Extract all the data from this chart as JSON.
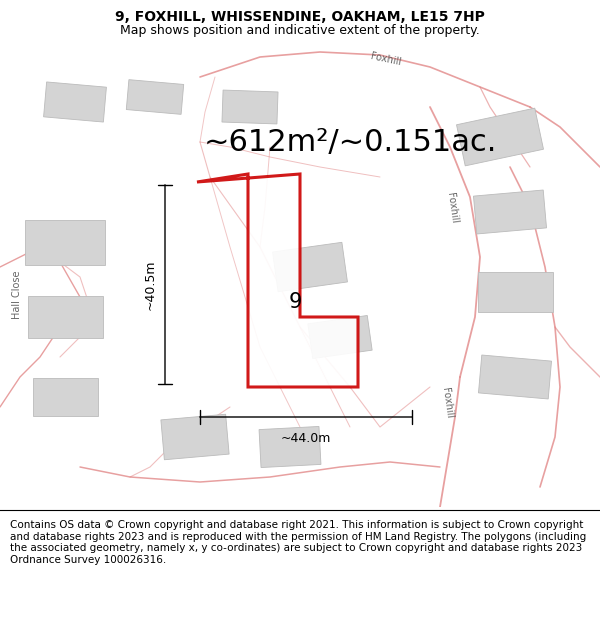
{
  "title": "9, FOXHILL, WHISSENDINE, OAKHAM, LE15 7HP",
  "subtitle": "Map shows position and indicative extent of the property.",
  "area_text": "~612m²/~0.151ac.",
  "dim_width": "~44.0m",
  "dim_height": "~40.5m",
  "property_label": "9",
  "footer": "Contains OS data © Crown copyright and database right 2021. This information is subject to Crown copyright and database rights 2023 and is reproduced with the permission of HM Land Registry. The polygons (including the associated geometry, namely x, y co-ordinates) are subject to Crown copyright and database rights 2023 Ordnance Survey 100026316.",
  "map_bg": "#ffffff",
  "road_line_color": "#e08080",
  "building_color": "#d4d4d4",
  "building_edge": "#bbbbbb",
  "property_outline_color": "#cc0000",
  "title_fontsize": 10,
  "subtitle_fontsize": 9,
  "area_fontsize": 22,
  "label_fontsize": 15,
  "dim_fontsize": 9,
  "footer_fontsize": 7.5,
  "road_label_fontsize": 7,
  "road_label_color": "#555555"
}
